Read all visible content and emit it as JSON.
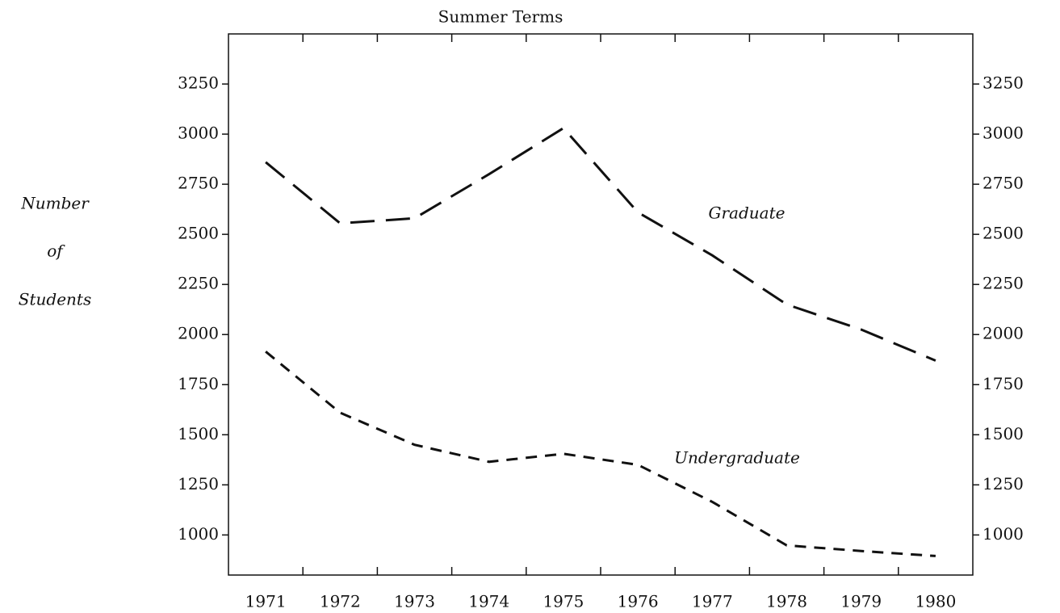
{
  "chart_data": {
    "type": "line",
    "title": "Summer Terms",
    "y_label": [
      "Number",
      "of",
      "Students"
    ],
    "categories": [
      "1971",
      "1972",
      "1973",
      "1974",
      "1975",
      "1976",
      "1977",
      "1978",
      "1979",
      "1980"
    ],
    "series": [
      {
        "name": "Graduate",
        "color": "#111111",
        "dash": "30 14",
        "values": [
          2860,
          2555,
          2580,
          2800,
          3030,
          2610,
          2395,
          2150,
          2025,
          1870
        ]
      },
      {
        "name": "Undergraduate",
        "color": "#111111",
        "dash": "14 10",
        "values": [
          1915,
          1610,
          1450,
          1365,
          1405,
          1350,
          1165,
          948,
          920,
          895
        ]
      }
    ],
    "ylim": [
      800,
      3500
    ],
    "yticks": [
      1000,
      1250,
      1500,
      1750,
      2000,
      2250,
      2500,
      2750,
      3000,
      3250
    ],
    "y2lim": [
      800,
      3500
    ],
    "y2ticks": [
      1000,
      1250,
      1500,
      1750,
      2000,
      2250,
      2500,
      2750,
      3000,
      3250
    ]
  }
}
